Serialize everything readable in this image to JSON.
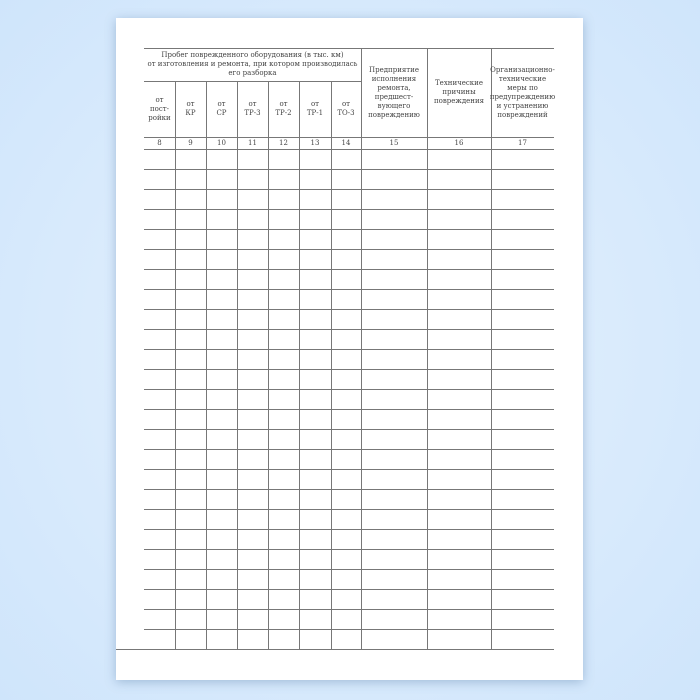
{
  "table": {
    "group_header": "Пробег поврежденного  оборудования (в тыс. км)\nот изготовления и ремонта,  при котором производилась\nего разборка",
    "sub_headers": [
      "от\nпост-\nройки",
      "от\nКР",
      "от\nСР",
      "от\nТР-3",
      "от\nТР-2",
      "от\nТР-1",
      "от\nТО-3"
    ],
    "headers": [
      "Предприятие\nисполнения\nремонта,\nпредшест-\nвующего\nповреждению",
      "Технические\nпричины\nповреждения",
      "Организационно-\nтехнические\nмеры по\nпредупреждению\nи устранению\nповреждений"
    ],
    "column_numbers": [
      "8",
      "9",
      "10",
      "11",
      "12",
      "13",
      "14",
      "15",
      "16",
      "17"
    ],
    "empty_rows": 25
  }
}
